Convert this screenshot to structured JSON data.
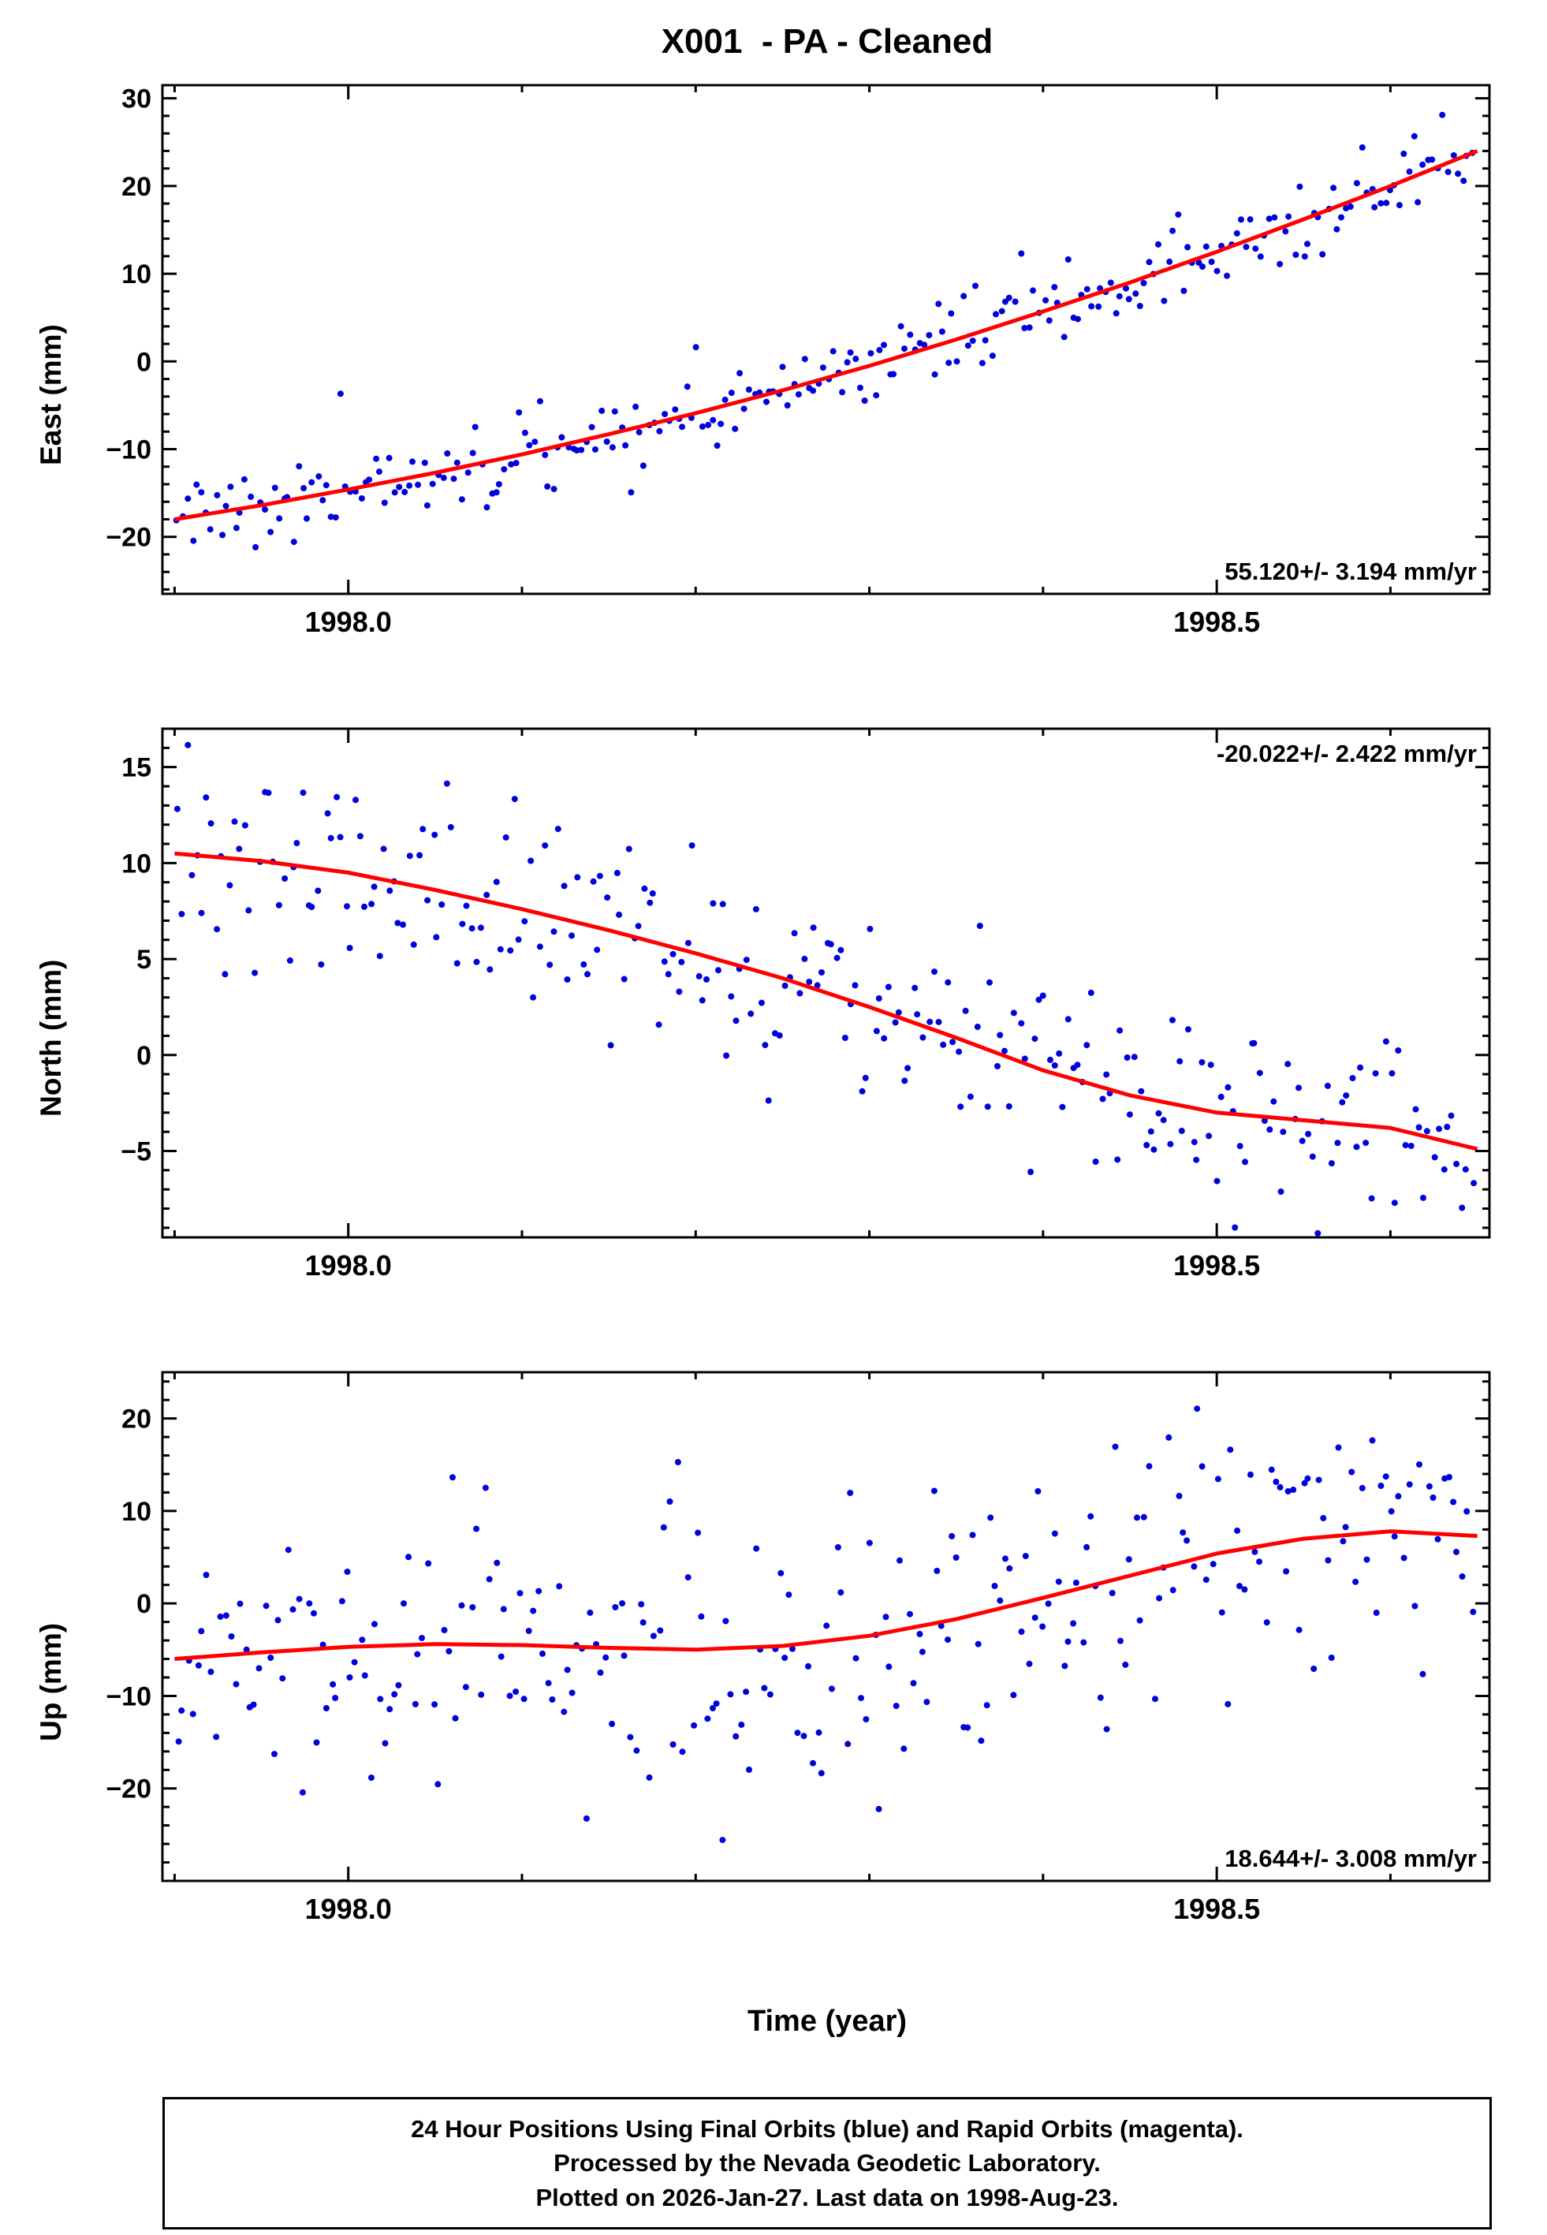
{
  "title": "X001  - PA - Cleaned",
  "xlabel": "Time (year)",
  "footer": {
    "lines": [
      "24 Hour Positions Using Final Orbits (blue) and Rapid Orbits (magenta).",
      "Processed by the Nevada Geodetic Laboratory.",
      "Plotted on 2026-Jan-27. Last data on 1998-Aug-23."
    ]
  },
  "colors": {
    "points": "#0000dd",
    "trend": "#ff0000",
    "frame": "#000000",
    "background": "#ffffff"
  },
  "chart_data": [
    {
      "type": "scatter",
      "panel": "east",
      "ylabel": "East (mm)",
      "annotation": "55.120+/- 3.194 mm/yr",
      "annotation_corner": "br",
      "xlim": [
        1997.893,
        1998.657
      ],
      "ylim": [
        -26.5,
        31.5
      ],
      "xticks": [
        1998.0,
        1998.5
      ],
      "xtick_minor": 0.1,
      "yticks": [
        -20,
        -10,
        0,
        10,
        20,
        30
      ],
      "ytick_minor": 2,
      "x_data": [
        1997.902,
        1998.647
      ],
      "n_points": 270,
      "noise_sd": 2.3,
      "outlier_rate": 0.02,
      "outlier_scale": 2.6,
      "seed": 7,
      "point_radius": 4,
      "trend": [
        [
          1997.9,
          -18.0
        ],
        [
          1997.95,
          -16.4
        ],
        [
          1998.0,
          -14.6
        ],
        [
          1998.05,
          -12.7
        ],
        [
          1998.1,
          -10.6
        ],
        [
          1998.15,
          -8.3
        ],
        [
          1998.2,
          -5.9
        ],
        [
          1998.25,
          -3.3
        ],
        [
          1998.3,
          -0.5
        ],
        [
          1998.35,
          2.5
        ],
        [
          1998.4,
          5.7
        ],
        [
          1998.45,
          9.0
        ],
        [
          1998.5,
          12.5
        ],
        [
          1998.55,
          16.2
        ],
        [
          1998.6,
          20.0
        ],
        [
          1998.65,
          24.0
        ]
      ]
    },
    {
      "type": "scatter",
      "panel": "north",
      "ylabel": "North (mm)",
      "annotation": "-20.022+/- 2.422 mm/yr",
      "annotation_corner": "tr",
      "xlim": [
        1997.893,
        1998.657
      ],
      "ylim": [
        -9.5,
        17.0
      ],
      "xticks": [
        1998.0,
        1998.5
      ],
      "xtick_minor": 0.1,
      "yticks": [
        -5,
        0,
        5,
        10,
        15
      ],
      "ytick_minor": 1,
      "x_data": [
        1997.902,
        1998.647
      ],
      "n_points": 270,
      "noise_sd": 2.4,
      "outlier_rate": 0.02,
      "outlier_scale": 2.4,
      "seed": 12,
      "point_radius": 4,
      "trend": [
        [
          1997.9,
          10.5
        ],
        [
          1997.95,
          10.1
        ],
        [
          1998.0,
          9.5
        ],
        [
          1998.05,
          8.6
        ],
        [
          1998.1,
          7.6
        ],
        [
          1998.15,
          6.5
        ],
        [
          1998.2,
          5.3
        ],
        [
          1998.25,
          4.0
        ],
        [
          1998.3,
          2.5
        ],
        [
          1998.35,
          0.9
        ],
        [
          1998.4,
          -0.8
        ],
        [
          1998.45,
          -2.1
        ],
        [
          1998.5,
          -3.0
        ],
        [
          1998.55,
          -3.4
        ],
        [
          1998.6,
          -3.8
        ],
        [
          1998.65,
          -4.9
        ]
      ]
    },
    {
      "type": "scatter",
      "panel": "up",
      "ylabel": "Up (mm)",
      "annotation": "18.644+/- 3.008 mm/yr",
      "annotation_corner": "br",
      "xlim": [
        1997.893,
        1998.657
      ],
      "ylim": [
        -30.0,
        25.0
      ],
      "xticks": [
        1998.0,
        1998.5
      ],
      "xtick_minor": 0.1,
      "yticks": [
        -20,
        -10,
        0,
        10,
        20
      ],
      "ytick_minor": 2,
      "x_data": [
        1997.902,
        1998.647
      ],
      "n_points": 270,
      "noise_sd": 7.2,
      "outlier_rate": 0.03,
      "outlier_scale": 2.2,
      "seed": 5,
      "point_radius": 4,
      "trend": [
        [
          1997.9,
          -6.0
        ],
        [
          1997.95,
          -5.3
        ],
        [
          1998.0,
          -4.7
        ],
        [
          1998.05,
          -4.4
        ],
        [
          1998.1,
          -4.5
        ],
        [
          1998.15,
          -4.8
        ],
        [
          1998.2,
          -5.0
        ],
        [
          1998.25,
          -4.6
        ],
        [
          1998.3,
          -3.5
        ],
        [
          1998.35,
          -1.7
        ],
        [
          1998.4,
          0.6
        ],
        [
          1998.45,
          3.0
        ],
        [
          1998.5,
          5.4
        ],
        [
          1998.55,
          7.0
        ],
        [
          1998.6,
          7.8
        ],
        [
          1998.65,
          7.3
        ]
      ]
    }
  ]
}
